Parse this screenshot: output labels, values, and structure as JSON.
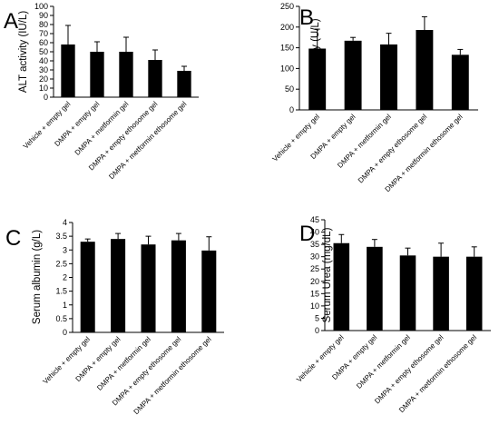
{
  "chart_data": [
    {
      "panel": "A",
      "type": "bar",
      "ylabel": "ALT activity (IU/L)",
      "ylim": [
        0,
        100
      ],
      "yticks": [
        "0",
        "10",
        "20",
        "30",
        "40",
        "50",
        "60",
        "70",
        "80",
        "90",
        "100"
      ],
      "categories": [
        "Vehicle + empty gel",
        "DMPA + empty gel",
        "DMPA + metformin gel",
        "DMPA + empty ethosome gel",
        "DMPA + metformin ethosome gel"
      ],
      "values": [
        58,
        50,
        50,
        41,
        29
      ],
      "errors": [
        21,
        11,
        16,
        11,
        5
      ],
      "colors": {
        "bar": "#000000",
        "axis": "#000000"
      }
    },
    {
      "panel": "B",
      "type": "bar",
      "ylabel": "AST activity (U/L)",
      "ylim": [
        0,
        250
      ],
      "yticks": [
        "0",
        "50",
        "100",
        "150",
        "200",
        "250"
      ],
      "categories": [
        "Vehicle + empty gel",
        "DMPA + empty gel",
        "DMPA + metformin gel",
        "DMPA + empty ethosome gel",
        "DMPA + metformin ethosome gel"
      ],
      "values": [
        148,
        167,
        158,
        193,
        133
      ],
      "errors": [
        47,
        8,
        27,
        32,
        13
      ],
      "colors": {
        "bar": "#000000",
        "axis": "#000000"
      }
    },
    {
      "panel": "C",
      "type": "bar",
      "ylabel": "Serum albumin (g/L)",
      "ylim": [
        0,
        4
      ],
      "yticks": [
        "0",
        "0.5",
        "1",
        "1.5",
        "2",
        "2.5",
        "3",
        "3.5",
        "4"
      ],
      "categories": [
        "Vehicle + empty gel",
        "DMPA + empty gel",
        "DMPA + metformin gel",
        "DMPA + empty ethosome gel",
        "DMPA + metformin ethosome gel"
      ],
      "values": [
        3.3,
        3.4,
        3.2,
        3.35,
        2.98
      ],
      "errors": [
        0.1,
        0.2,
        0.3,
        0.25,
        0.5
      ],
      "colors": {
        "bar": "#000000",
        "axis": "#000000"
      }
    },
    {
      "panel": "D",
      "type": "bar",
      "ylabel": "Serum Urea (mg/dL)",
      "ylim": [
        0,
        45
      ],
      "yticks": [
        "0",
        "5",
        "10",
        "15",
        "20",
        "25",
        "30",
        "35",
        "40",
        "45"
      ],
      "categories": [
        "Vehicle + empty gel",
        "DMPA + empty gel",
        "DMPA + metformin gel",
        "DMPA + empty ethosome gel",
        "DMPA + metformin ethosome gel"
      ],
      "values": [
        35.5,
        34,
        30.5,
        30,
        30
      ],
      "errors": [
        3.5,
        3,
        3,
        5.5,
        4
      ],
      "colors": {
        "bar": "#000000",
        "axis": "#000000"
      }
    }
  ]
}
